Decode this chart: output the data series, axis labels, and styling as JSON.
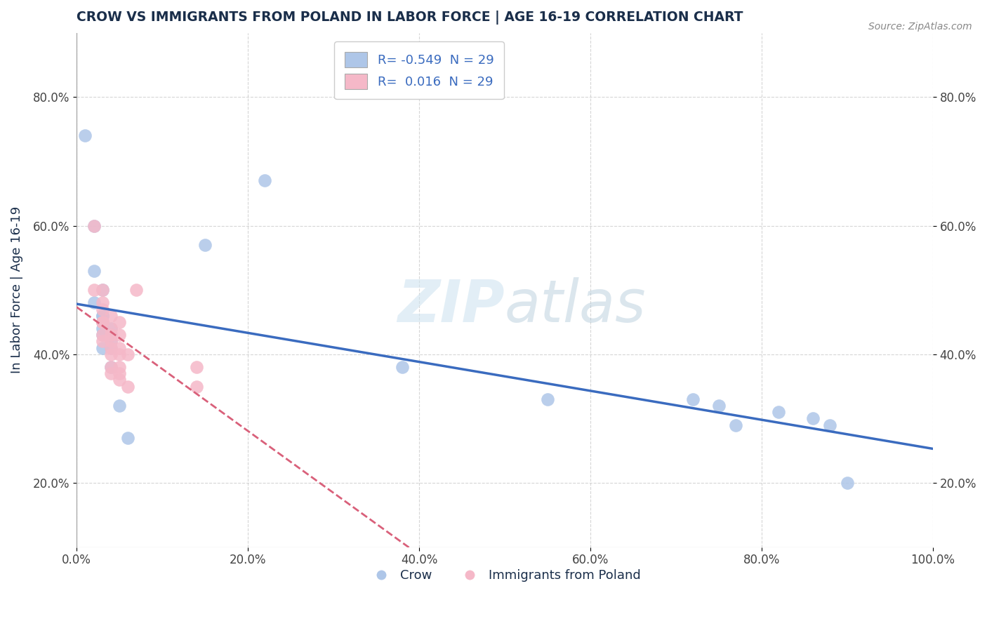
{
  "title": "CROW VS IMMIGRANTS FROM POLAND IN LABOR FORCE | AGE 16-19 CORRELATION CHART",
  "source": "Source: ZipAtlas.com",
  "ylabel": "In Labor Force | Age 16-19",
  "crow_r": "-0.549",
  "crow_n": "29",
  "poland_r": "0.016",
  "poland_n": "29",
  "blue_color": "#aec6e8",
  "pink_color": "#f5b8c8",
  "blue_line_color": "#3a6bbf",
  "pink_line_color": "#d9607a",
  "title_color": "#1a2e4a",
  "axis_color": "#1a2e4a",
  "tick_color": "#444444",
  "watermark_color": "#d0e4f0",
  "legend_labels": [
    "Crow",
    "Immigrants from Poland"
  ],
  "background_color": "#ffffff",
  "grid_color": "#cccccc",
  "crow_points": [
    [
      0.01,
      0.74
    ],
    [
      0.02,
      0.6
    ],
    [
      0.02,
      0.53
    ],
    [
      0.02,
      0.48
    ],
    [
      0.03,
      0.5
    ],
    [
      0.03,
      0.46
    ],
    [
      0.03,
      0.45
    ],
    [
      0.03,
      0.44
    ],
    [
      0.03,
      0.41
    ],
    [
      0.03,
      0.43
    ],
    [
      0.03,
      0.46
    ],
    [
      0.04,
      0.44
    ],
    [
      0.04,
      0.41
    ],
    [
      0.04,
      0.38
    ],
    [
      0.04,
      0.43
    ],
    [
      0.04,
      0.42
    ],
    [
      0.05,
      0.32
    ],
    [
      0.06,
      0.27
    ],
    [
      0.15,
      0.57
    ],
    [
      0.22,
      0.67
    ],
    [
      0.38,
      0.38
    ],
    [
      0.55,
      0.33
    ],
    [
      0.72,
      0.33
    ],
    [
      0.75,
      0.32
    ],
    [
      0.77,
      0.29
    ],
    [
      0.82,
      0.31
    ],
    [
      0.86,
      0.3
    ],
    [
      0.88,
      0.29
    ],
    [
      0.9,
      0.2
    ]
  ],
  "poland_points": [
    [
      0.02,
      0.6
    ],
    [
      0.02,
      0.5
    ],
    [
      0.03,
      0.48
    ],
    [
      0.03,
      0.45
    ],
    [
      0.03,
      0.43
    ],
    [
      0.03,
      0.42
    ],
    [
      0.03,
      0.5
    ],
    [
      0.03,
      0.47
    ],
    [
      0.03,
      0.45
    ],
    [
      0.04,
      0.44
    ],
    [
      0.04,
      0.42
    ],
    [
      0.04,
      0.46
    ],
    [
      0.04,
      0.43
    ],
    [
      0.04,
      0.41
    ],
    [
      0.04,
      0.4
    ],
    [
      0.04,
      0.38
    ],
    [
      0.04,
      0.37
    ],
    [
      0.05,
      0.45
    ],
    [
      0.05,
      0.43
    ],
    [
      0.05,
      0.4
    ],
    [
      0.05,
      0.38
    ],
    [
      0.05,
      0.36
    ],
    [
      0.05,
      0.41
    ],
    [
      0.05,
      0.37
    ],
    [
      0.06,
      0.4
    ],
    [
      0.06,
      0.35
    ],
    [
      0.07,
      0.5
    ],
    [
      0.14,
      0.38
    ],
    [
      0.14,
      0.35
    ]
  ],
  "xlim": [
    0.0,
    1.0
  ],
  "ylim": [
    0.1,
    0.9
  ],
  "xticks": [
    0.0,
    0.2,
    0.4,
    0.6,
    0.8,
    1.0
  ],
  "yticks": [
    0.2,
    0.4,
    0.6,
    0.8
  ]
}
